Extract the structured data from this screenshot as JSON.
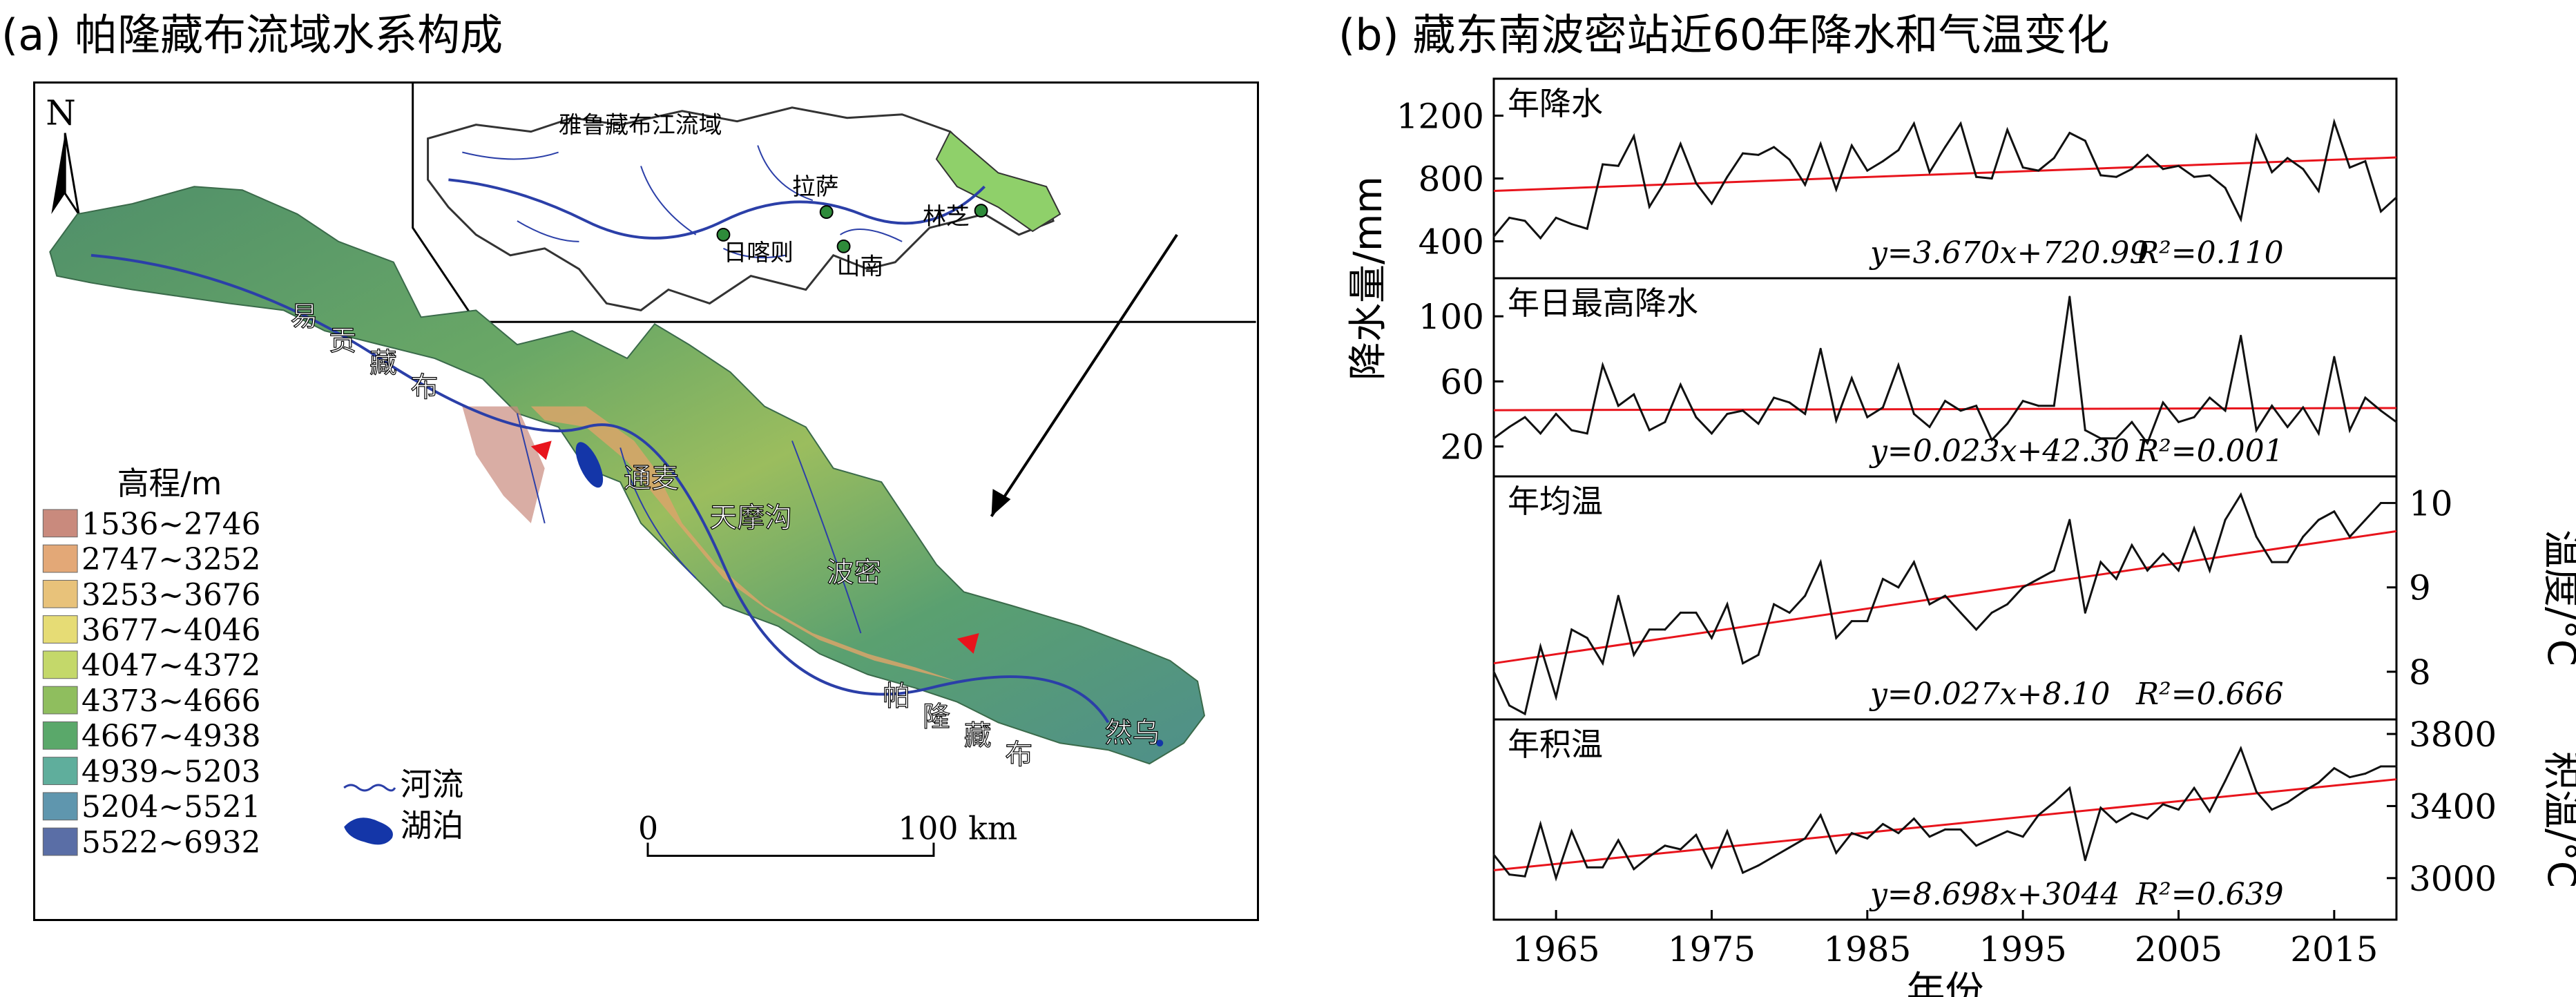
{
  "titles": {
    "a": "(a) 帕隆藏布流域水系构成",
    "b": "(b) 藏东南波密站近60年降水和气温变化"
  },
  "map": {
    "north": "N",
    "inset_title": "雅鲁藏布江流域",
    "inset_places": [
      "拉萨",
      "林芝",
      "日喀则",
      "山南"
    ],
    "river_labels": [
      "易",
      "贡",
      "藏",
      "布",
      "帕",
      "隆",
      "藏",
      "布"
    ],
    "places": [
      "通麦",
      "天摩沟",
      "波密",
      "然乌"
    ],
    "legend_title": "高程/m",
    "legend": [
      {
        "label": "1536~2746",
        "color": "#c98a7d"
      },
      {
        "label": "2747~3252",
        "color": "#e3a877"
      },
      {
        "label": "3253~3676",
        "color": "#e8c27a"
      },
      {
        "label": "3677~4046",
        "color": "#e6dc75"
      },
      {
        "label": "4047~4372",
        "color": "#c4d86a"
      },
      {
        "label": "4373~4666",
        "color": "#8fbe5e"
      },
      {
        "label": "4667~4938",
        "color": "#5aa86a"
      },
      {
        "label": "4939~5203",
        "color": "#5fae9c"
      },
      {
        "label": "5204~5521",
        "color": "#5f96ae"
      },
      {
        "label": "5522~6932",
        "color": "#5a6ea6"
      }
    ],
    "legend_river": "河流",
    "legend_lake": "湖泊",
    "scale_zero": "0",
    "scale_end": "100 km"
  },
  "colors": {
    "trend": "#e8141c",
    "series": "#111111",
    "river": "#2b3fa8"
  },
  "chart_data": [
    {
      "type": "line",
      "panel": "年降水",
      "ylabel": "降水量/mm",
      "ylim": [
        200,
        1400
      ],
      "yticks": [
        400,
        800,
        1200
      ],
      "equation": "y=3.670x+720.99",
      "r2": "R²=0.110",
      "x": [
        1961,
        1962,
        1963,
        1964,
        1965,
        1966,
        1967,
        1968,
        1969,
        1970,
        1971,
        1972,
        1973,
        1974,
        1975,
        1976,
        1977,
        1978,
        1979,
        1980,
        1981,
        1982,
        1983,
        1984,
        1985,
        1986,
        1987,
        1988,
        1989,
        1990,
        1991,
        1992,
        1993,
        1994,
        1995,
        1996,
        1997,
        1998,
        1999,
        2000,
        2001,
        2002,
        2003,
        2004,
        2005,
        2006,
        2007,
        2008,
        2009,
        2010,
        2011,
        2012,
        2013,
        2014,
        2015,
        2016,
        2017,
        2018,
        2019
      ],
      "values": [
        430,
        550,
        530,
        420,
        550,
        510,
        480,
        890,
        880,
        1070,
        620,
        780,
        1020,
        770,
        640,
        810,
        960,
        950,
        1000,
        920,
        760,
        1020,
        730,
        1010,
        850,
        910,
        980,
        1150,
        840,
        1000,
        1150,
        810,
        800,
        1110,
        870,
        850,
        930,
        1090,
        1040,
        820,
        810,
        860,
        950,
        860,
        880,
        810,
        820,
        740,
        540,
        1070,
        840,
        930,
        860,
        720,
        1160,
        870,
        910,
        590,
        680
      ],
      "trend": {
        "slope": 3.67,
        "intercept": 720.99
      }
    },
    {
      "type": "line",
      "panel": "年日最高降水",
      "ylabel": "降水量/mm",
      "ylim": [
        5,
        120
      ],
      "yticks": [
        20,
        60,
        100
      ],
      "equation": "y=0.023x+42.30",
      "r2": "R²=0.001",
      "x": [
        1961,
        1962,
        1963,
        1964,
        1965,
        1966,
        1967,
        1968,
        1969,
        1970,
        1971,
        1972,
        1973,
        1974,
        1975,
        1976,
        1977,
        1978,
        1979,
        1980,
        1981,
        1982,
        1983,
        1984,
        1985,
        1986,
        1987,
        1988,
        1989,
        1990,
        1991,
        1992,
        1993,
        1994,
        1995,
        1996,
        1997,
        1998,
        1999,
        2000,
        2001,
        2002,
        2003,
        2004,
        2005,
        2006,
        2007,
        2008,
        2009,
        2010,
        2011,
        2012,
        2013,
        2014,
        2015,
        2016,
        2017,
        2018,
        2019
      ],
      "values": [
        25,
        32,
        38,
        28,
        40,
        30,
        28,
        70,
        45,
        52,
        30,
        35,
        58,
        38,
        28,
        40,
        42,
        34,
        50,
        47,
        40,
        80,
        36,
        62,
        38,
        44,
        70,
        40,
        32,
        48,
        42,
        45,
        24,
        34,
        48,
        45,
        45,
        112,
        30,
        25,
        25,
        35,
        22,
        47,
        35,
        38,
        50,
        42,
        88,
        30,
        45,
        32,
        44,
        28,
        75,
        30,
        50,
        42,
        35
      ],
      "trend": {
        "slope": 0.023,
        "intercept": 42.3
      }
    },
    {
      "type": "line",
      "panel": "年均温",
      "ylabel": "温度/°C",
      "ylim": [
        7.5,
        10.25
      ],
      "yticks": [
        8,
        9,
        10
      ],
      "equation": "y=0.027x+8.10",
      "r2": "R²=0.666",
      "x": [
        1961,
        1962,
        1963,
        1964,
        1965,
        1966,
        1967,
        1968,
        1969,
        1970,
        1971,
        1972,
        1973,
        1974,
        1975,
        1976,
        1977,
        1978,
        1979,
        1980,
        1981,
        1982,
        1983,
        1984,
        1985,
        1986,
        1987,
        1988,
        1989,
        1990,
        1991,
        1992,
        1993,
        1994,
        1995,
        1996,
        1997,
        1998,
        1999,
        2000,
        2001,
        2002,
        2003,
        2004,
        2005,
        2006,
        2007,
        2008,
        2009,
        2010,
        2011,
        2012,
        2013,
        2014,
        2015,
        2016,
        2017,
        2018,
        2019
      ],
      "values": [
        8.0,
        7.6,
        7.5,
        8.3,
        7.7,
        8.5,
        8.4,
        8.1,
        8.9,
        8.2,
        8.5,
        8.5,
        8.7,
        8.7,
        8.4,
        8.8,
        8.1,
        8.2,
        8.8,
        8.7,
        8.9,
        9.3,
        8.4,
        8.6,
        8.6,
        9.1,
        9.0,
        9.3,
        8.8,
        8.9,
        8.7,
        8.5,
        8.7,
        8.8,
        9.0,
        9.1,
        9.2,
        9.8,
        8.7,
        9.3,
        9.1,
        9.5,
        9.2,
        9.4,
        9.2,
        9.7,
        9.2,
        9.8,
        10.1,
        9.6,
        9.3,
        9.3,
        9.6,
        9.8,
        9.9,
        9.6,
        9.8,
        10.0,
        10.0
      ],
      "trend": {
        "slope": 0.027,
        "intercept": 8.1
      }
    },
    {
      "type": "line",
      "panel": "年积温",
      "ylabel": "积温/°C",
      "ylim": [
        2800,
        3850
      ],
      "yticks": [
        3000,
        3400,
        3800
      ],
      "equation": "y=8.698x+3044",
      "r2": "R²=0.639",
      "x": [
        1961,
        1962,
        1963,
        1964,
        1965,
        1966,
        1967,
        1968,
        1969,
        1970,
        1971,
        1972,
        1973,
        1974,
        1975,
        1976,
        1977,
        1978,
        1979,
        1980,
        1981,
        1982,
        1983,
        1984,
        1985,
        1986,
        1987,
        1988,
        1989,
        1990,
        1991,
        1992,
        1993,
        1994,
        1995,
        1996,
        1997,
        1998,
        1999,
        2000,
        2001,
        2002,
        2003,
        2004,
        2005,
        2006,
        2007,
        2008,
        2009,
        2010,
        2011,
        2012,
        2013,
        2014,
        2015,
        2016,
        2017,
        2018,
        2019
      ],
      "values": [
        3130,
        3020,
        3010,
        3300,
        3000,
        3260,
        3060,
        3060,
        3210,
        3050,
        3120,
        3180,
        3160,
        3240,
        3060,
        3260,
        3030,
        3070,
        3120,
        3170,
        3220,
        3350,
        3140,
        3250,
        3220,
        3300,
        3250,
        3330,
        3230,
        3270,
        3270,
        3180,
        3220,
        3260,
        3230,
        3350,
        3420,
        3500,
        3100,
        3390,
        3310,
        3360,
        3330,
        3410,
        3380,
        3500,
        3370,
        3540,
        3720,
        3480,
        3380,
        3420,
        3480,
        3530,
        3610,
        3560,
        3580,
        3620,
        3620
      ],
      "trend": {
        "slope": 8.698,
        "intercept": 3044
      }
    }
  ],
  "xaxis": {
    "label": "年份",
    "ticks": [
      1965,
      1975,
      1985,
      1995,
      2005,
      2015
    ],
    "xlim": [
      1961,
      2019
    ]
  }
}
